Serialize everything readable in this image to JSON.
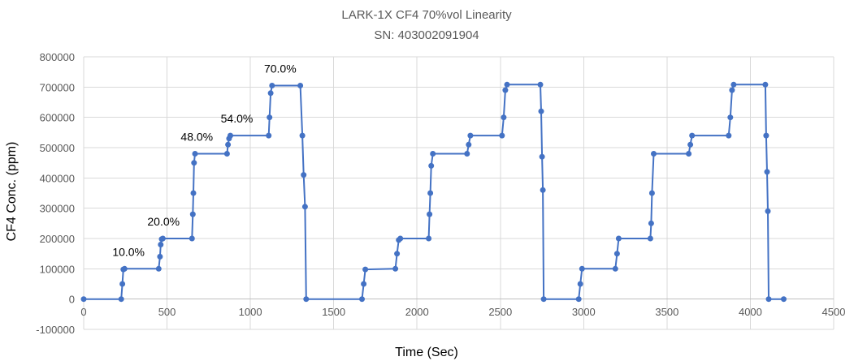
{
  "chart_data": {
    "type": "scatter",
    "title": "LARK-1X CF4 70%vol Linearity",
    "subtitle": "SN: 403002091904",
    "xlabel": "Time (Sec)",
    "ylabel": "CF4 Conc. (ppm)",
    "xlim": [
      0,
      4500
    ],
    "ylim": [
      -100000,
      800000
    ],
    "x_ticks": [
      0,
      500,
      1000,
      1500,
      2000,
      2500,
      3000,
      3500,
      4000,
      4500
    ],
    "y_ticks": [
      -100000,
      0,
      100000,
      200000,
      300000,
      400000,
      500000,
      600000,
      700000,
      800000
    ],
    "grid": "horizontal and vertical",
    "legend": "none",
    "series": [
      {
        "color": "#4472c4",
        "x": [
          0,
          225,
          232,
          238,
          245,
          450,
          458,
          462,
          468,
          475,
          650,
          655,
          658,
          662,
          668,
          860,
          866,
          872,
          880,
          1110,
          1115,
          1122,
          1130,
          1300,
          1312,
          1320,
          1328,
          1335,
          1670,
          1680,
          1690,
          1870,
          1880,
          1890,
          1900,
          2070,
          2075,
          2080,
          2085,
          2095,
          2300,
          2310,
          2320,
          2510,
          2520,
          2530,
          2540,
          2740,
          2745,
          2750,
          2755,
          2760,
          2970,
          2980,
          2990,
          3190,
          3200,
          3210,
          3400,
          3405,
          3410,
          3420,
          3630,
          3640,
          3650,
          3870,
          3880,
          3890,
          3900,
          4090,
          4095,
          4100,
          4105,
          4110,
          4200
        ],
        "y": [
          0,
          0,
          50000,
          98000,
          100000,
          100000,
          140000,
          180000,
          198000,
          200000,
          200000,
          280000,
          350000,
          450000,
          480000,
          480000,
          510000,
          530000,
          540000,
          540000,
          600000,
          680000,
          705000,
          705000,
          540000,
          410000,
          305000,
          0,
          0,
          50000,
          98000,
          100000,
          150000,
          195000,
          200000,
          200000,
          280000,
          350000,
          440000,
          480000,
          480000,
          510000,
          540000,
          540000,
          600000,
          690000,
          708000,
          708000,
          620000,
          470000,
          360000,
          0,
          0,
          50000,
          100000,
          100000,
          150000,
          200000,
          200000,
          250000,
          350000,
          480000,
          480000,
          510000,
          540000,
          540000,
          600000,
          690000,
          708000,
          708000,
          540000,
          420000,
          290000,
          0,
          0
        ]
      }
    ],
    "annotations": [
      {
        "x": 230,
        "y": 100000,
        "text": "10.0%"
      },
      {
        "x": 440,
        "y": 200000,
        "text": "20.0%"
      },
      {
        "x": 640,
        "y": 480000,
        "text": "48.0%"
      },
      {
        "x": 880,
        "y": 540000,
        "text": "54.0%"
      },
      {
        "x": 1140,
        "y": 705000,
        "text": "70.0%"
      }
    ]
  }
}
